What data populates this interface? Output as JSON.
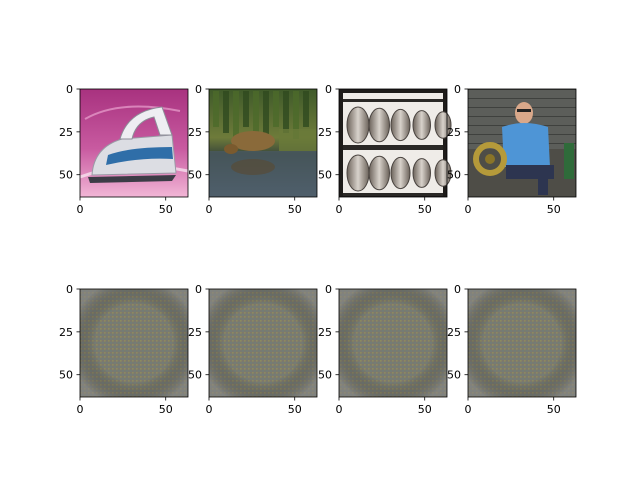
{
  "chart_data": {
    "type": "image-grid",
    "grid": {
      "rows": 2,
      "cols": 4
    },
    "panels": [
      {
        "row": 0,
        "col": 0,
        "content": "clothes iron on pink background",
        "xlim": [
          0,
          63
        ],
        "ylim": [
          63,
          0
        ]
      },
      {
        "row": 0,
        "col": 1,
        "content": "animal drinking at forest pond",
        "xlim": [
          0,
          63
        ],
        "ylim": [
          63,
          0
        ]
      },
      {
        "row": 0,
        "col": 2,
        "content": "stacked wine barrels",
        "xlim": [
          0,
          63
        ],
        "ylim": [
          63,
          0
        ]
      },
      {
        "row": 0,
        "col": 3,
        "content": "man with french horn",
        "xlim": [
          0,
          63
        ],
        "ylim": [
          63,
          0
        ]
      },
      {
        "row": 1,
        "col": 0,
        "content": "uniform noise pattern",
        "xlim": [
          0,
          63
        ],
        "ylim": [
          63,
          0
        ]
      },
      {
        "row": 1,
        "col": 1,
        "content": "uniform noise pattern",
        "xlim": [
          0,
          63
        ],
        "ylim": [
          63,
          0
        ]
      },
      {
        "row": 1,
        "col": 2,
        "content": "uniform noise pattern",
        "xlim": [
          0,
          63
        ],
        "ylim": [
          63,
          0
        ]
      },
      {
        "row": 1,
        "col": 3,
        "content": "uniform noise pattern",
        "xlim": [
          0,
          63
        ],
        "ylim": [
          63,
          0
        ]
      }
    ],
    "x_ticks": [
      0,
      50
    ],
    "y_ticks": [
      0,
      25,
      50
    ],
    "grid_lines": false
  }
}
